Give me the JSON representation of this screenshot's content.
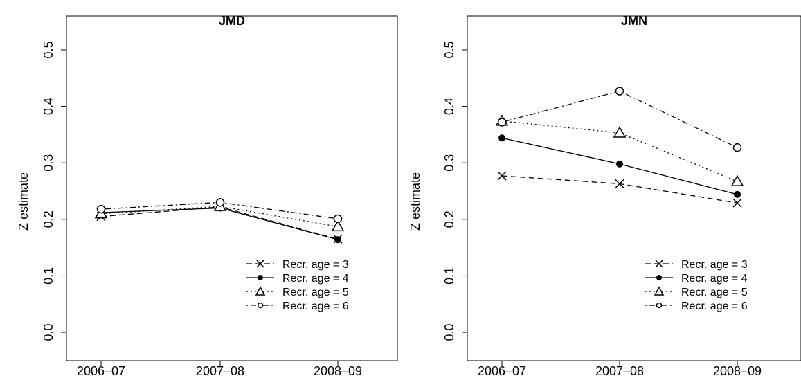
{
  "chart_data": [
    {
      "type": "line",
      "title": "JMD",
      "xlabel": "",
      "ylabel": "Z estimate",
      "categories": [
        "2006–07",
        "2007–08",
        "2008–09"
      ],
      "ylim": [
        0.0,
        0.5
      ],
      "yticks": [
        "0.0",
        "0.1",
        "0.2",
        "0.3",
        "0.4",
        "0.5"
      ],
      "legend_position": "bottom-right",
      "series": [
        {
          "name": "Recr. age = 3",
          "marker": "cross",
          "dash": "dashed",
          "values": [
            0.205,
            0.222,
            0.165
          ]
        },
        {
          "name": "Recr. age = 4",
          "marker": "filled-circle",
          "dash": "solid",
          "values": [
            0.212,
            0.22,
            0.164
          ]
        },
        {
          "name": "Recr. age = 5",
          "marker": "triangle",
          "dash": "dotted",
          "values": [
            0.21,
            0.223,
            0.187
          ]
        },
        {
          "name": "Recr. age = 6",
          "marker": "open-circle",
          "dash": "dotdash",
          "values": [
            0.218,
            0.23,
            0.201
          ]
        }
      ]
    },
    {
      "type": "line",
      "title": "JMN",
      "xlabel": "",
      "ylabel": "Z estimate",
      "categories": [
        "2006–07",
        "2007–08",
        "2008–09"
      ],
      "ylim": [
        0.0,
        0.5
      ],
      "yticks": [
        "0.0",
        "0.1",
        "0.2",
        "0.3",
        "0.4",
        "0.5"
      ],
      "legend_position": "bottom-right",
      "series": [
        {
          "name": "Recr. age = 3",
          "marker": "cross",
          "dash": "dashed",
          "values": [
            0.277,
            0.263,
            0.229
          ]
        },
        {
          "name": "Recr. age = 4",
          "marker": "filled-circle",
          "dash": "solid",
          "values": [
            0.344,
            0.298,
            0.244
          ]
        },
        {
          "name": "Recr. age = 5",
          "marker": "triangle",
          "dash": "dotted",
          "values": [
            0.374,
            0.353,
            0.267
          ]
        },
        {
          "name": "Recr. age = 6",
          "marker": "open-circle",
          "dash": "dotdash",
          "values": [
            0.372,
            0.427,
            0.327
          ]
        }
      ]
    }
  ]
}
